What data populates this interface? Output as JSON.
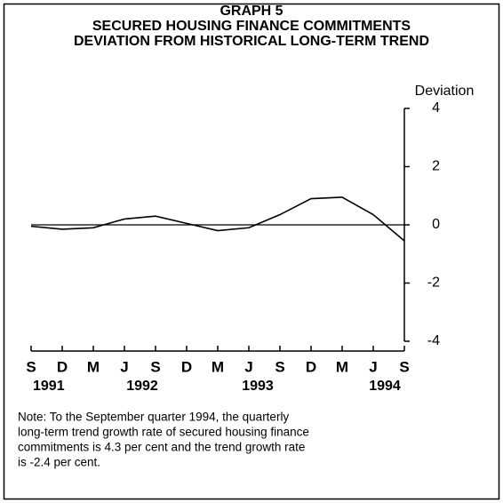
{
  "chart_data": {
    "type": "line",
    "title": [
      "GRAPH 5",
      "SECURED HOUSING FINANCE COMMITMENTS",
      "DEVIATION FROM HISTORICAL LONG-TERM TREND"
    ],
    "y_axis_label": "Deviation",
    "categories": [
      "S",
      "D",
      "M",
      "J",
      "S",
      "D",
      "M",
      "J",
      "S",
      "D",
      "M",
      "J",
      "S"
    ],
    "years": [
      "1991",
      "1992",
      "1993",
      "1994"
    ],
    "series": [
      {
        "color": "#000000",
        "values": [
          -0.05,
          -0.15,
          -0.1,
          0.2,
          0.3,
          0.05,
          -0.2,
          -0.1,
          0.35,
          0.9,
          0.95,
          0.35,
          -0.55
        ]
      }
    ],
    "ylim": [
      -4,
      4
    ],
    "yticks": [
      4,
      2,
      0,
      -2,
      -4
    ],
    "note": [
      "Note: To the September quarter 1994, the quarterly",
      "long-term trend growth rate of secured housing finance",
      "commitments is 4.3 per cent and the trend growth rate",
      "is -2.4 per cent."
    ]
  }
}
